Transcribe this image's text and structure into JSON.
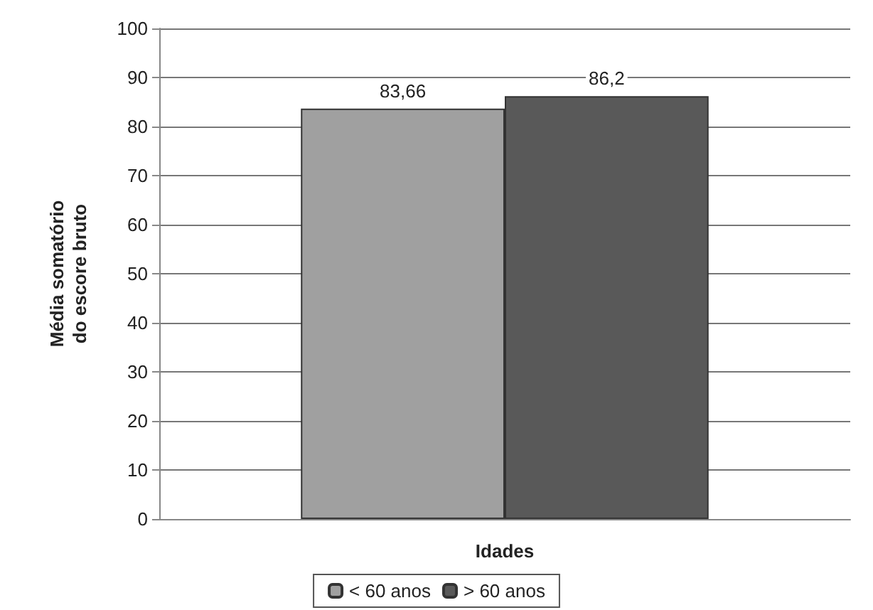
{
  "chart_data": {
    "type": "bar",
    "xlabel": "Idades",
    "ylabel": "Média somatório\ndo escore bruto",
    "categories": [
      null
    ],
    "series": [
      {
        "name": "< 60 anos",
        "color": "#a0a0a0",
        "values": [
          83.66
        ],
        "value_labels": [
          "83,66"
        ]
      },
      {
        "name": "> 60 anos",
        "color": "#595959",
        "values": [
          86.2
        ],
        "value_labels": [
          "86,2"
        ]
      }
    ],
    "ylim": [
      0,
      100
    ],
    "yticks": [
      0,
      10,
      20,
      30,
      40,
      50,
      60,
      70,
      80,
      90,
      100
    ],
    "grid": "y",
    "legend": "bottom"
  }
}
